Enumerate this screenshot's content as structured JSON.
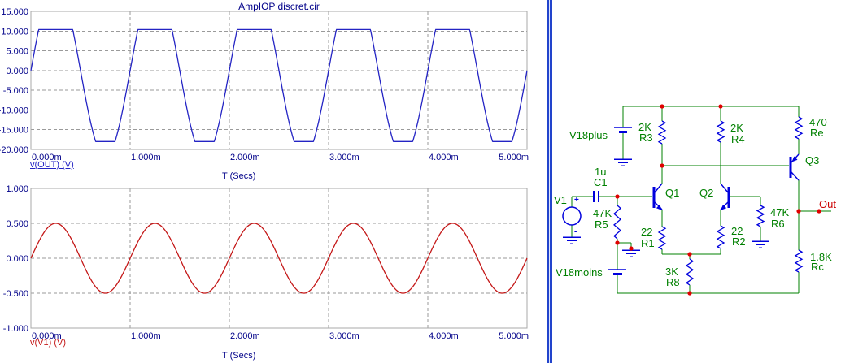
{
  "chart_data": [
    {
      "type": "line",
      "title": "AmpIOP discret.cir",
      "xlabel": "T (Secs)",
      "x_ticks": [
        "0.000m",
        "1.000m",
        "2.000m",
        "3.000m",
        "4.000m",
        "5.000m"
      ],
      "y_ticks": [
        "15.000",
        "10.000",
        "5.000",
        "0.000",
        "-5.000",
        "-10.000",
        "-15.000",
        "-20.000"
      ],
      "ylim": [
        -20,
        15
      ],
      "xlim_ms": [
        0,
        5
      ],
      "grid": "dashed",
      "legend_position": "below-left",
      "series": [
        {
          "name": "v(OUT) (V)",
          "color": "#2424c4",
          "waveform": "clipped-sine",
          "amplitude_V": 22,
          "period_ms": 1,
          "phase_deg": 0,
          "clip_high_V": 10.4,
          "clip_low_V": -18
        }
      ]
    },
    {
      "type": "line",
      "title": "",
      "xlabel": "T (Secs)",
      "x_ticks": [
        "0.000m",
        "1.000m",
        "2.000m",
        "3.000m",
        "4.000m",
        "5.000m"
      ],
      "y_ticks": [
        "1.000",
        "0.500",
        "0.000",
        "-0.500",
        "-1.000"
      ],
      "ylim": [
        -1,
        1
      ],
      "xlim_ms": [
        0,
        5
      ],
      "grid": "dashed",
      "legend_position": "below-left",
      "series": [
        {
          "name": "v(V1) (V)",
          "color": "#c41818",
          "waveform": "sine",
          "amplitude_V": 0.5,
          "period_ms": 1,
          "phase_deg": 0
        }
      ]
    }
  ],
  "schematic": {
    "labels": {
      "v18plus": "V18plus",
      "v18moins": "V18moins",
      "v1": "V1",
      "q1": "Q1",
      "q2": "Q2",
      "q3": "Q3",
      "out": "Out",
      "c1": {
        "value": "1u",
        "name": "C1"
      },
      "r1": {
        "value": "22",
        "name": "R1"
      },
      "r2": {
        "value": "22",
        "name": "R2"
      },
      "r3": {
        "value": "2K",
        "name": "R3"
      },
      "r4": {
        "value": "2K",
        "name": "R4"
      },
      "r5": {
        "value": "47K",
        "name": "R5"
      },
      "r6": {
        "value": "47K",
        "name": "R6"
      },
      "r8": {
        "value": "3K",
        "name": "R8"
      },
      "re": {
        "value": "470",
        "name": "Re"
      },
      "rc": {
        "value": "1.8K",
        "name": "Rc"
      },
      "v1_polarity": {
        "plus": "+",
        "minus": "-"
      }
    },
    "colors": {
      "wire": "#008000",
      "component": "#0000dd",
      "junction_dot": "#e00000",
      "label": "#008000",
      "node_label": "#cc0000"
    }
  }
}
